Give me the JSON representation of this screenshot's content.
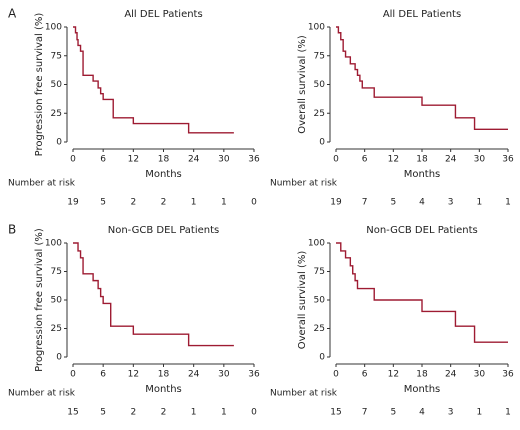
{
  "panel_labels": [
    "A",
    "B"
  ],
  "chart_data": [
    {
      "type": "line",
      "step": true,
      "title": "All DEL Patients",
      "xlabel": "Months",
      "ylabel": "Progression free survival (%)",
      "series": [
        {
          "name": null,
          "color": "#9e1b32",
          "x": [
            0,
            0.5,
            0.8,
            1,
            1.5,
            2,
            4,
            5,
            5.5,
            6,
            8,
            12,
            23,
            32
          ],
          "values": [
            100,
            95,
            89,
            84,
            79,
            58,
            53,
            47,
            42,
            37,
            21,
            16,
            8,
            8
          ]
        }
      ],
      "xlim": [
        0,
        36
      ],
      "xticks": [
        0,
        6,
        12,
        18,
        24,
        30,
        36
      ],
      "ylim": [
        0,
        100
      ],
      "yticks": [
        0,
        25,
        50,
        75,
        100
      ],
      "risk_label": "Number at risk",
      "number_at_risk": [
        19,
        5,
        2,
        2,
        1,
        1,
        0
      ]
    },
    {
      "type": "line",
      "step": true,
      "title": "All DEL Patients",
      "xlabel": "Months",
      "ylabel": "Overall survival (%)",
      "series": [
        {
          "name": null,
          "color": "#9e1b32",
          "x": [
            0,
            0.5,
            1,
            1.5,
            2,
            3,
            4,
            4.5,
            5,
            5.5,
            8,
            18,
            25,
            29,
            36
          ],
          "values": [
            100,
            95,
            89,
            79,
            74,
            68,
            63,
            58,
            53,
            47,
            39,
            32,
            21,
            11,
            11
          ]
        }
      ],
      "xlim": [
        0,
        36
      ],
      "xticks": [
        0,
        6,
        12,
        18,
        24,
        30,
        36
      ],
      "ylim": [
        0,
        100
      ],
      "yticks": [
        0,
        25,
        50,
        75,
        100
      ],
      "risk_label": "Number at risk",
      "number_at_risk": [
        19,
        7,
        5,
        4,
        3,
        1,
        1
      ]
    },
    {
      "type": "line",
      "step": true,
      "title": "Non-GCB DEL Patients",
      "xlabel": "Months",
      "ylabel": "Progression free survival (%)",
      "series": [
        {
          "name": null,
          "color": "#9e1b32",
          "x": [
            0,
            1,
            1.5,
            2,
            4,
            5,
            5.5,
            6,
            7.5,
            12,
            23,
            32
          ],
          "values": [
            100,
            93,
            87,
            73,
            67,
            60,
            53,
            47,
            27,
            20,
            10,
            10
          ]
        }
      ],
      "xlim": [
        0,
        36
      ],
      "xticks": [
        0,
        6,
        12,
        18,
        24,
        30,
        36
      ],
      "ylim": [
        0,
        100
      ],
      "yticks": [
        0,
        25,
        50,
        75,
        100
      ],
      "risk_label": "Number at risk",
      "number_at_risk": [
        15,
        5,
        2,
        2,
        1,
        1,
        0
      ]
    },
    {
      "type": "line",
      "step": true,
      "title": "Non-GCB DEL Patients",
      "xlabel": "Months",
      "ylabel": "Overall survival (%)",
      "series": [
        {
          "name": null,
          "color": "#9e1b32",
          "x": [
            0,
            1,
            2,
            3,
            3.5,
            4,
            4.5,
            8,
            18,
            25,
            29,
            36
          ],
          "values": [
            100,
            93,
            87,
            80,
            73,
            67,
            60,
            50,
            40,
            27,
            13,
            13
          ]
        }
      ],
      "xlim": [
        0,
        36
      ],
      "xticks": [
        0,
        6,
        12,
        18,
        24,
        30,
        36
      ],
      "ylim": [
        0,
        100
      ],
      "yticks": [
        0,
        25,
        50,
        75,
        100
      ],
      "risk_label": "Number at risk",
      "number_at_risk": [
        15,
        7,
        5,
        4,
        3,
        1,
        1
      ]
    }
  ]
}
